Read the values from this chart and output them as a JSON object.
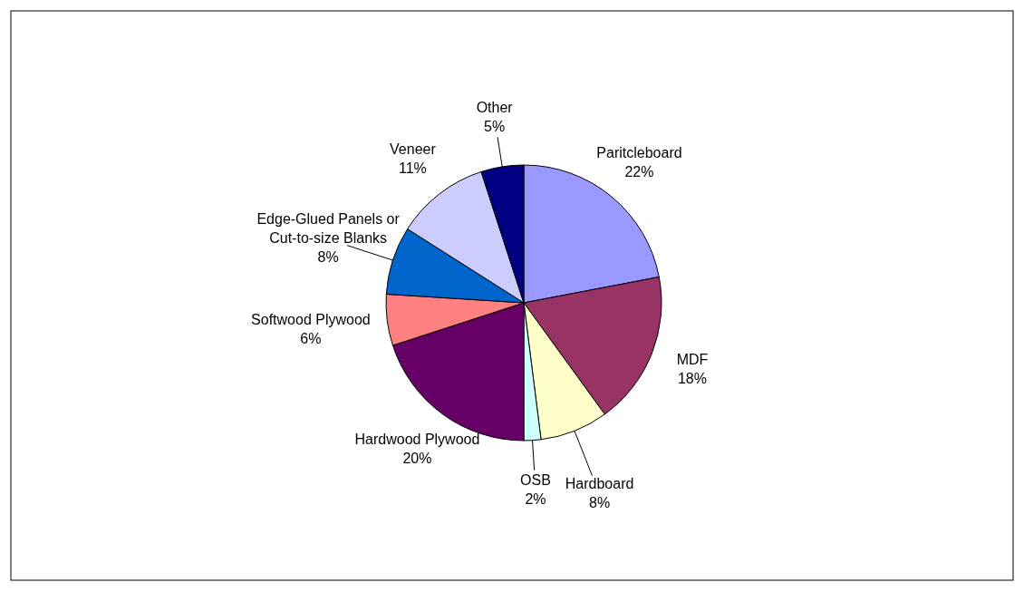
{
  "chart_data": {
    "type": "pie",
    "categories": [
      "Paritcleboard",
      "MDF",
      "Hardboard",
      "OSB",
      "Hardwood Plywood",
      "Softwood Plywood",
      "Edge-Glued Panels or Cut-to-size Blanks",
      "Veneer",
      "Other"
    ],
    "values": [
      22,
      18,
      8,
      2,
      20,
      6,
      8,
      11,
      5
    ],
    "colors": [
      "#9999ff",
      "#993366",
      "#ffffcc",
      "#ccffff",
      "#660066",
      "#ff8080",
      "#0066cc",
      "#ccccff",
      "#000080"
    ],
    "value_labels": [
      "22%",
      "18%",
      "8%",
      "2%",
      "20%",
      "6%",
      "8%",
      "11%",
      "5%"
    ],
    "legend": false
  }
}
